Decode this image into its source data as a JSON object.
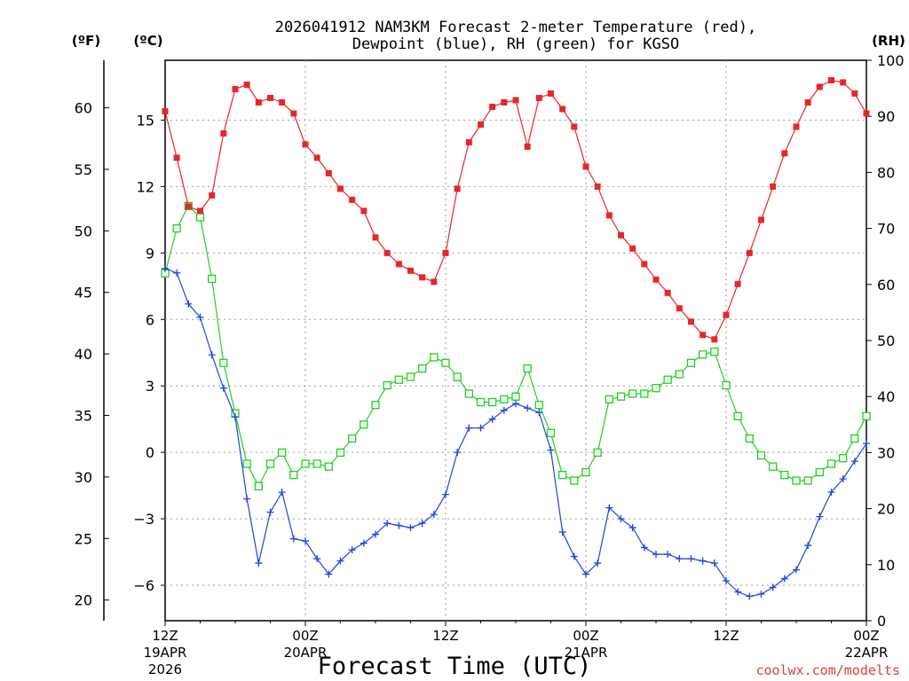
{
  "chart_data": {
    "type": "line",
    "title_line1": "2026041912 NAM3KM Forecast 2-meter Temperature (red),",
    "title_line2": "Dewpoint (blue), RH (green) for KGSO",
    "xlabel": "Forecast Time (UTC)",
    "credit": "coolwx.com/modelts",
    "units": {
      "f": "(ºF)",
      "c": "(ºC)",
      "rh": "(RH)"
    },
    "x_range_hours": [
      0,
      60
    ],
    "x_ticks": [
      {
        "hour": 0,
        "line1": "12Z",
        "line2": "19APR",
        "line3": "2026"
      },
      {
        "hour": 12,
        "line1": "00Z",
        "line2": "20APR",
        "line3": ""
      },
      {
        "hour": 24,
        "line1": "12Z",
        "line2": "",
        "line3": ""
      },
      {
        "hour": 36,
        "line1": "00Z",
        "line2": "21APR",
        "line3": ""
      },
      {
        "hour": 48,
        "line1": "12Z",
        "line2": "",
        "line3": ""
      },
      {
        "hour": 60,
        "line1": "00Z",
        "line2": "22APR",
        "line3": ""
      }
    ],
    "c_axis": {
      "range": [
        -7.6,
        17.7
      ],
      "ticks": [
        "15",
        "12",
        "9",
        "6",
        "3",
        "0",
        "−3",
        "−6"
      ],
      "tick_values": [
        15,
        12,
        9,
        6,
        3,
        0,
        -3,
        -6
      ]
    },
    "f_axis": {
      "ticks": [
        "60",
        "55",
        "50",
        "45",
        "40",
        "35",
        "30",
        "25",
        "20"
      ],
      "tick_values": [
        60,
        55,
        50,
        45,
        40,
        35,
        30,
        25,
        20
      ]
    },
    "rh_axis": {
      "range": [
        0,
        100
      ],
      "ticks": [
        "100",
        "90",
        "80",
        "70",
        "60",
        "50",
        "40",
        "30",
        "20",
        "10",
        "0"
      ],
      "tick_values": [
        100,
        90,
        80,
        70,
        60,
        50,
        40,
        30,
        20,
        10,
        0
      ]
    },
    "series": [
      {
        "name": "Temperature",
        "unit": "C",
        "color": "#e8262a",
        "marker": "filled-square",
        "values": [
          15.4,
          13.3,
          11.1,
          10.9,
          11.6,
          14.4,
          16.4,
          16.6,
          15.8,
          16.0,
          15.8,
          15.3,
          13.9,
          13.3,
          12.6,
          11.9,
          11.4,
          10.9,
          9.7,
          9.0,
          8.5,
          8.2,
          7.9,
          7.7,
          9.0,
          11.9,
          14.0,
          14.8,
          15.6,
          15.8,
          15.9,
          13.8,
          16.0,
          16.2,
          15.5,
          14.7,
          12.9,
          12.0,
          10.7,
          9.8,
          9.2,
          8.5,
          7.8,
          7.2,
          6.5,
          5.9,
          5.3,
          5.1,
          6.2,
          7.6,
          9.0,
          10.5,
          12.0,
          13.5,
          14.7,
          15.8,
          16.5,
          16.8,
          16.7,
          16.2,
          15.3
        ]
      },
      {
        "name": "Dewpoint",
        "unit": "C",
        "color": "#2044e0",
        "marker": "plus",
        "values": [
          8.3,
          8.1,
          6.7,
          6.1,
          4.4,
          2.9,
          1.6,
          -2.1,
          -5.0,
          -2.7,
          -1.8,
          -3.9,
          -4.0,
          -4.8,
          -5.5,
          -4.9,
          -4.4,
          -4.1,
          -3.7,
          -3.2,
          -3.3,
          -3.4,
          -3.2,
          -2.8,
          -1.9,
          0.0,
          1.1,
          1.1,
          1.5,
          1.9,
          2.2,
          2.0,
          1.8,
          0.1,
          -3.6,
          -4.7,
          -5.5,
          -5.0,
          -2.5,
          -3.0,
          -3.4,
          -4.3,
          -4.6,
          -4.6,
          -4.8,
          -4.8,
          -4.9,
          -5.0,
          -5.8,
          -6.3,
          -6.5,
          -6.4,
          -6.1,
          -5.7,
          -5.3,
          -4.2,
          -2.9,
          -1.8,
          -1.2,
          -0.4,
          0.4
        ]
      },
      {
        "name": "RH",
        "unit": "%",
        "color": "#1ed21e",
        "marker": "open-square",
        "values": [
          62,
          70,
          74,
          72,
          61,
          46,
          37,
          28,
          24,
          28,
          30,
          26,
          28,
          28,
          27.5,
          30,
          32.5,
          35,
          38.5,
          42,
          43,
          43.5,
          45,
          47,
          46,
          43.5,
          40.5,
          39,
          39,
          39.5,
          40,
          45,
          38.5,
          33.5,
          26,
          25,
          26.5,
          30,
          39.5,
          40,
          40.5,
          40.5,
          41.5,
          43,
          44,
          46,
          47.5,
          48,
          42,
          36.5,
          32.5,
          29.5,
          27.5,
          26,
          25,
          25,
          26.5,
          28,
          29,
          32.5,
          36.5
        ]
      }
    ]
  }
}
